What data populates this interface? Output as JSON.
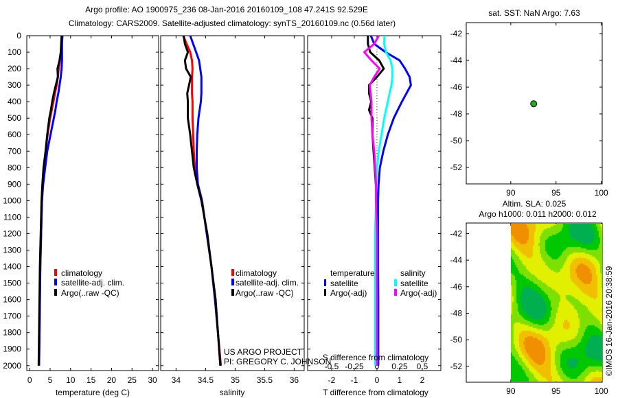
{
  "title": {
    "line1": "Argo profile: AO 1900975_236 08-Jan-2016 20160109_108 47.241S 92.529E",
    "line2": "Climatology: CARS2009. Satellite-adjusted climatology: synTS_20160109.nc (0.56d later)"
  },
  "credit": {
    "project": "US ARGO PROJECT",
    "pi": "PI: GREGORY C. JOHNSON",
    "stamp": "©IMOS 16-Jan-2016 20:38:59"
  },
  "colors": {
    "climatology": "#ff0000",
    "satellite": "#0000ff",
    "argo": "#000000",
    "sal_sat": "#00ffff",
    "sal_argo": "#ff00ff",
    "point": "#22aa22"
  },
  "chart_data": [
    {
      "type": "line",
      "id": "temperature",
      "xlabel": "temperature (deg C)",
      "ylabel": "",
      "xlim": [
        -0.7,
        31.5
      ],
      "ylim": [
        0,
        2030
      ],
      "y_reversed": true,
      "xticks": [
        0,
        5,
        10,
        15,
        20,
        25,
        30
      ],
      "yticks": [
        0,
        100,
        200,
        300,
        400,
        500,
        600,
        700,
        800,
        900,
        1000,
        1100,
        1200,
        1300,
        1400,
        1500,
        1600,
        1700,
        1800,
        1900,
        2000
      ],
      "depth": [
        0,
        50,
        100,
        150,
        200,
        250,
        300,
        350,
        400,
        450,
        500,
        600,
        700,
        800,
        900,
        1000,
        1200,
        1400,
        1600,
        1800,
        2000
      ],
      "series": [
        {
          "name": "climatology",
          "color": "#ff0000",
          "values": [
            8.0,
            7.8,
            7.7,
            7.4,
            7.1,
            6.9,
            6.6,
            6.2,
            5.8,
            5.4,
            5.0,
            4.4,
            3.9,
            3.5,
            3.2,
            3.0,
            2.8,
            2.6,
            2.5,
            2.4,
            2.3
          ]
        },
        {
          "name": "satellite-adj. clim.",
          "color": "#0000ff",
          "values": [
            8.0,
            7.9,
            7.9,
            7.9,
            7.8,
            7.6,
            7.3,
            7.0,
            6.6,
            6.3,
            5.9,
            5.1,
            4.3,
            3.8,
            3.3,
            3.0,
            2.8,
            2.6,
            2.5,
            2.4,
            2.3
          ]
        },
        {
          "name": "Argo(..raw -QC)",
          "color": "#000000",
          "values": [
            7.8,
            7.7,
            7.6,
            7.3,
            6.8,
            6.9,
            6.4,
            5.9,
            5.5,
            5.2,
            4.8,
            4.3,
            3.9,
            3.4,
            3.1,
            2.9,
            2.7,
            2.5,
            2.4,
            2.3,
            2.2
          ]
        }
      ]
    },
    {
      "type": "line",
      "id": "salinity",
      "xlabel": "salinity",
      "xlim": [
        33.74,
        36.17
      ],
      "ylim": [
        0,
        2030
      ],
      "y_reversed": true,
      "xticks": [
        34,
        34.5,
        35,
        35.5,
        36
      ],
      "depth": [
        0,
        50,
        100,
        150,
        200,
        250,
        300,
        350,
        400,
        500,
        600,
        700,
        800,
        900,
        1000,
        1200,
        1400,
        1600,
        1800,
        2000
      ],
      "series": [
        {
          "name": "climatology",
          "color": "#ff0000",
          "values": [
            34.12,
            34.18,
            34.24,
            34.27,
            34.28,
            34.27,
            34.27,
            34.27,
            34.28,
            34.28,
            34.29,
            34.3,
            34.32,
            34.37,
            34.44,
            34.52,
            34.6,
            34.66,
            34.71,
            34.76
          ]
        },
        {
          "name": "satellite-adj. clim.",
          "color": "#0000ff",
          "values": [
            34.24,
            34.29,
            34.34,
            34.39,
            34.41,
            34.43,
            34.43,
            34.43,
            34.42,
            34.38,
            34.36,
            34.35,
            34.35,
            34.37,
            34.44,
            34.52,
            34.6,
            34.66,
            34.71,
            34.75
          ]
        },
        {
          "name": "Argo(..raw -QC)",
          "color": "#000000",
          "values": [
            34.13,
            34.15,
            34.2,
            34.15,
            34.17,
            34.25,
            34.22,
            34.19,
            34.2,
            34.2,
            34.24,
            34.27,
            34.3,
            34.36,
            34.43,
            34.53,
            34.6,
            34.67,
            34.71,
            34.75
          ]
        }
      ]
    },
    {
      "type": "line",
      "id": "differences",
      "xlabel": "T difference from climatology",
      "x2label": "S difference from climatology",
      "xlim": [
        -3.06,
        2.82
      ],
      "x2lim": [
        -0.765,
        0.705
      ],
      "ylim": [
        0,
        2030
      ],
      "y_reversed": true,
      "xticks": [
        -2,
        -1,
        0,
        1,
        2
      ],
      "x2ticks": [
        -0.5,
        -0.25,
        0,
        0.25,
        0.5
      ],
      "legend_headers": [
        "temperature",
        "salinity"
      ],
      "depth": [
        0,
        50,
        100,
        150,
        200,
        250,
        300,
        350,
        400,
        450,
        500,
        600,
        700,
        800,
        900,
        1000,
        1200,
        1400,
        1600,
        1800,
        2000
      ],
      "series": [
        {
          "name": "satellite",
          "group": "temperature",
          "axis": "T",
          "color": "#0000ff",
          "values": [
            -0.27,
            -0.12,
            0.38,
            1.0,
            1.24,
            1.44,
            1.5,
            1.3,
            1.1,
            0.92,
            0.74,
            0.48,
            0.28,
            0.13,
            0.07,
            0.05,
            0.05,
            0.05,
            0.06,
            0.06,
            0.06
          ]
        },
        {
          "name": "Argo(-adj)",
          "group": "temperature",
          "axis": "T",
          "color": "#000000",
          "values": [
            -0.4,
            -0.4,
            -0.3,
            0.1,
            0.3,
            0.0,
            -0.35,
            -0.35,
            -0.25,
            -0.35,
            -0.2,
            -0.2,
            -0.15,
            -0.1,
            -0.05,
            -0.02,
            0.0,
            0.0,
            0.0,
            0.0,
            0.0
          ]
        },
        {
          "name": "satellite",
          "group": "salinity",
          "axis": "S",
          "color": "#00ffff",
          "values": [
            0.083,
            0.08,
            0.1,
            0.15,
            0.17,
            0.17,
            0.16,
            0.14,
            0.12,
            0.1,
            0.08,
            0.05,
            0.02,
            0.0,
            -0.01,
            -0.01,
            -0.02,
            -0.02,
            -0.02,
            -0.02,
            -0.02
          ]
        },
        {
          "name": "Argo(-adj)",
          "group": "salinity",
          "axis": "S",
          "color": "#ff00ff",
          "values": [
            0.02,
            -0.03,
            -0.14,
            -0.06,
            0.03,
            -0.03,
            -0.08,
            -0.07,
            -0.06,
            -0.06,
            -0.06,
            -0.05,
            -0.03,
            -0.02,
            -0.01,
            -0.01,
            0.0,
            0.0,
            0.0,
            0.0,
            0.0
          ]
        }
      ]
    },
    {
      "type": "scatter",
      "id": "sst-map",
      "title": "sat. SST: NaN Argo: 7.63",
      "xlim": [
        85.08,
        100.1
      ],
      "ylim": [
        -53.23,
        -41.18
      ],
      "xticks": [
        90,
        95,
        100
      ],
      "yticks": [
        -42,
        -44,
        -46,
        -48,
        -50,
        -52
      ],
      "points": [
        {
          "lon": 92.529,
          "lat": -47.241
        }
      ]
    },
    {
      "type": "heatmap",
      "id": "sla-map",
      "title": "Altim. SLA: 0.025",
      "subtitle": "Argo h1000: 0.011 h2000: 0.012",
      "xlim": [
        85.08,
        100.1
      ],
      "ylim": [
        -53.2,
        -41.2
      ],
      "data_lon_range": [
        90,
        100
      ],
      "xticks": [
        90,
        95,
        100
      ],
      "yticks": [
        -42,
        -44,
        -46,
        -48,
        -50,
        -52
      ],
      "colormap": [
        "#00b050",
        "#00c800",
        "#7ee000",
        "#e0f000",
        "#f0c000",
        "#f09000"
      ]
    }
  ]
}
